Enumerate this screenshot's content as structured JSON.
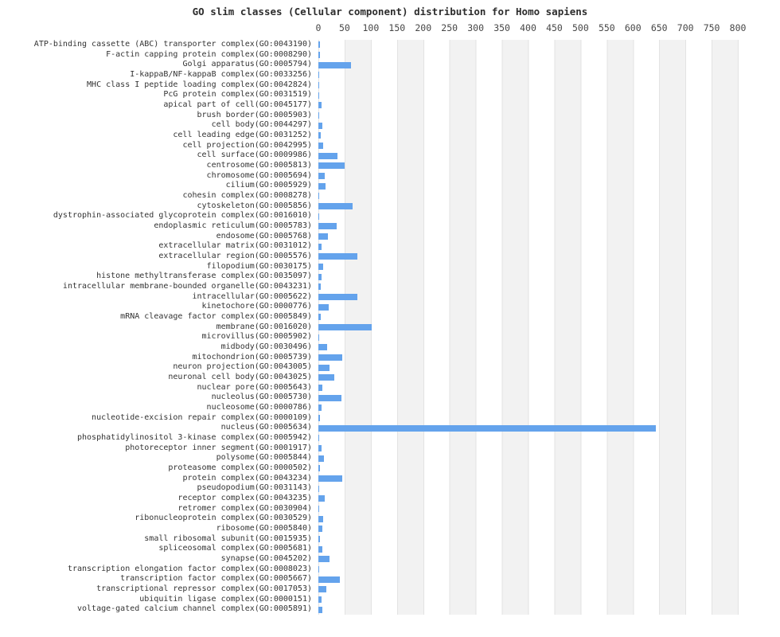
{
  "chart_data": {
    "type": "bar",
    "orientation": "horizontal",
    "title": "GO slim classes (Cellular component) distribution for Homo sapiens",
    "x_ticks": [
      0,
      50,
      100,
      150,
      200,
      250,
      300,
      350,
      400,
      450,
      500,
      550,
      600,
      650,
      700,
      750,
      800
    ],
    "xlim": [
      0,
      806
    ],
    "grid": "vertical-bands-alternating",
    "legend": "none",
    "bar_color": "#64a3ec",
    "categories": [
      "ATP-binding cassette (ABC) transporter complex(GO:0043190)",
      "F-actin capping protein complex(GO:0008290)",
      "Golgi apparatus(GO:0005794)",
      "I-kappaB/NF-kappaB complex(GO:0033256)",
      "MHC class I peptide loading complex(GO:0042824)",
      "PcG protein complex(GO:0031519)",
      "apical part of cell(GO:0045177)",
      "brush border(GO:0005903)",
      "cell body(GO:0044297)",
      "cell leading edge(GO:0031252)",
      "cell projection(GO:0042995)",
      "cell surface(GO:0009986)",
      "centrosome(GO:0005813)",
      "chromosome(GO:0005694)",
      "cilium(GO:0005929)",
      "cohesin complex(GO:0008278)",
      "cytoskeleton(GO:0005856)",
      "dystrophin-associated glycoprotein complex(GO:0016010)",
      "endoplasmic reticulum(GO:0005783)",
      "endosome(GO:0005768)",
      "extracellular matrix(GO:0031012)",
      "extracellular region(GO:0005576)",
      "filopodium(GO:0030175)",
      "histone methyltransferase complex(GO:0035097)",
      "intracellular membrane-bounded organelle(GO:0043231)",
      "intracellular(GO:0005622)",
      "kinetochore(GO:0000776)",
      "mRNA cleavage factor complex(GO:0005849)",
      "membrane(GO:0016020)",
      "microvillus(GO:0005902)",
      "midbody(GO:0030496)",
      "mitochondrion(GO:0005739)",
      "neuron projection(GO:0043005)",
      "neuronal cell body(GO:0043025)",
      "nuclear pore(GO:0005643)",
      "nucleolus(GO:0005730)",
      "nucleosome(GO:0000786)",
      "nucleotide-excision repair complex(GO:0000109)",
      "nucleus(GO:0005634)",
      "phosphatidylinositol 3-kinase complex(GO:0005942)",
      "photoreceptor inner segment(GO:0001917)",
      "polysome(GO:0005844)",
      "proteasome complex(GO:0000502)",
      "protein complex(GO:0043234)",
      "pseudopodium(GO:0031143)",
      "receptor complex(GO:0043235)",
      "retromer complex(GO:0030904)",
      "ribonucleoprotein complex(GO:0030529)",
      "ribosome(GO:0005840)",
      "small ribosomal subunit(GO:0015935)",
      "spliceosomal complex(GO:0005681)",
      "synapse(GO:0045202)",
      "transcription elongation factor complex(GO:0008023)",
      "transcription factor complex(GO:0005667)",
      "transcriptional repressor complex(GO:0017053)",
      "ubiquitin ligase complex(GO:0000151)",
      "voltage-gated calcium channel complex(GO:0005891)"
    ],
    "values": [
      3,
      3,
      62,
      2,
      2,
      2,
      6,
      2,
      8,
      5,
      9,
      36,
      50,
      12,
      13,
      2,
      66,
      2,
      35,
      18,
      6,
      74,
      9,
      6,
      4,
      75,
      20,
      5,
      102,
      2,
      16,
      45,
      22,
      30,
      8,
      44,
      6,
      3,
      643,
      2,
      6,
      10,
      3,
      46,
      2,
      12,
      2,
      9,
      8,
      3,
      8,
      22,
      2,
      41,
      15,
      6,
      7
    ]
  }
}
